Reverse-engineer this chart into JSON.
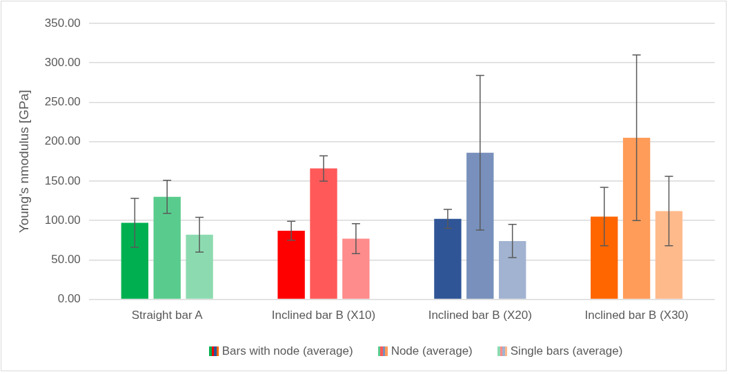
{
  "chart_data": {
    "type": "bar",
    "ylabel": "Young's nmodulus [GPa]",
    "categories": [
      "Straight bar A",
      "Inclined bar B (X10)",
      "Inclined bar B (X20)",
      "Inclined bar B (X30)"
    ],
    "series": [
      {
        "name": "Bars with node (average)",
        "colors": [
          "#00b050",
          "#ff0000",
          "#2f5597",
          "#ff6600"
        ],
        "values": [
          97,
          87,
          102,
          105
        ],
        "errors": [
          31,
          12,
          12,
          37
        ]
      },
      {
        "name": "Node (average)",
        "colors": [
          "#59cc8d",
          "#ff5959",
          "#7890bb",
          "#ff9c59"
        ],
        "values": [
          130,
          166,
          186,
          205
        ],
        "errors": [
          21,
          16,
          98,
          105
        ]
      },
      {
        "name": "Single bars (average)",
        "colors": [
          "#8cdbb0",
          "#ff8c8c",
          "#a1b3d0",
          "#ffba8c"
        ],
        "values": [
          82,
          77,
          74,
          112
        ],
        "errors": [
          22,
          19,
          21,
          44
        ]
      }
    ],
    "ylim": [
      0,
      350
    ],
    "yticks": [
      {
        "value": 0,
        "label": "0.00"
      },
      {
        "value": 50,
        "label": "50.00"
      },
      {
        "value": 100,
        "label": "100.00"
      },
      {
        "value": 150,
        "label": "150.00"
      },
      {
        "value": 200,
        "label": "200.00"
      },
      {
        "value": 250,
        "label": "250.00"
      },
      {
        "value": 300,
        "label": "300.00"
      },
      {
        "value": 350,
        "label": "350.00"
      }
    ],
    "grid": "y",
    "legend": "bottom"
  }
}
